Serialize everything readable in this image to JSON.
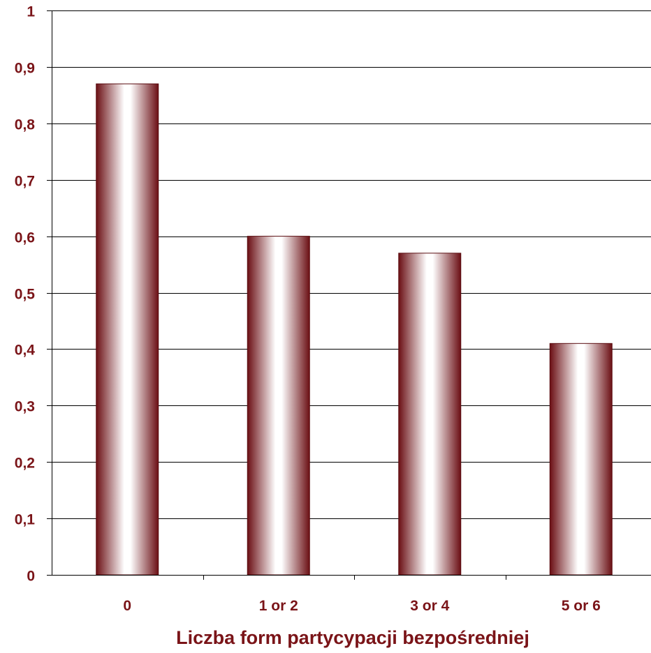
{
  "chart_data": {
    "type": "bar",
    "categories": [
      "0",
      "1 or 2",
      "3 or 4",
      "5 or 6"
    ],
    "values": [
      0.87,
      0.6,
      0.57,
      0.41
    ],
    "xlabel": "Liczba form partycypacji bezpośredniej",
    "ylabel": "",
    "ylim": [
      0,
      1
    ],
    "yticks": [
      0,
      0.1,
      0.2,
      0.3,
      0.4,
      0.5,
      0.6,
      0.7,
      0.8,
      0.9,
      1
    ],
    "ytick_labels": [
      "0",
      "0,1",
      "0,2",
      "0,3",
      "0,4",
      "0,5",
      "0,6",
      "0,7",
      "0,8",
      "0,9",
      "1"
    ],
    "grid": true,
    "legend": "none",
    "colors": {
      "bar_dark": "#6b0f14",
      "bar_light": "#ffffff",
      "text": "#7a1418",
      "grid": "#000000"
    }
  }
}
